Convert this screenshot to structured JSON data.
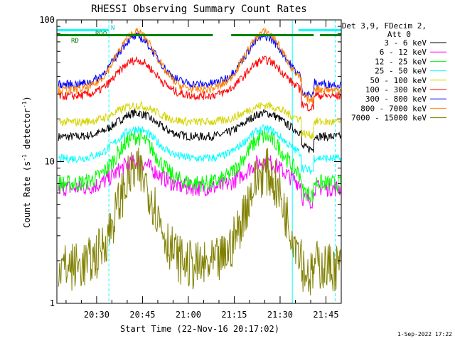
{
  "chart_data": {
    "type": "line",
    "title": "RHESSI Observing Summary Count Rates",
    "xlabel": "Start Time (22-Nov-16 20:17:02)",
    "ylabel": "Count Rate (s",
    "ylabel_sup": "-1",
    "ylabel_tail": " detector",
    "ylabel_tail_sup": "-1",
    "ylabel_end": ")",
    "y_scale": "log",
    "ylim": [
      1,
      100
    ],
    "xlim_minutes": [
      20.28,
      21.8
    ],
    "x_ticks": [
      "20:30",
      "20:45",
      "21:00",
      "21:15",
      "21:30",
      "21:45"
    ],
    "y_ticks": [
      "1",
      "10",
      "100"
    ],
    "legend_title_line1": "Det 3,9, FDecim 2,",
    "legend_title_line2": "Att 0",
    "legend_position": "right",
    "date_stamp": "1-Sep-2022 17:22",
    "annotations": {
      "rd_1": "RD",
      "rd_2": "RDO",
      "n": "N"
    },
    "flag_bars": [
      {
        "color": "#00ffff",
        "start": "20:17",
        "end": "20:34"
      },
      {
        "color": "#00ffff",
        "start": "21:36",
        "end": "21:50"
      },
      {
        "color": "#008000",
        "start": "20:17",
        "end": "21:08"
      },
      {
        "color": "#008000",
        "start": "21:14",
        "end": "21:41"
      },
      {
        "color": "#008000",
        "start": "21:43",
        "end": "21:50"
      }
    ],
    "night_periods": [
      {
        "start": "20:34",
        "end": "21:34"
      }
    ],
    "series": [
      {
        "name": "3 - 6 keV",
        "color": "#000000",
        "quiet": 15,
        "peak": 22,
        "night": 15
      },
      {
        "name": "6 - 12 keV",
        "color": "#ff00ff",
        "quiet": 6.5,
        "peak": 10,
        "night": 5
      },
      {
        "name": "12 - 25 keV",
        "color": "#00ff00",
        "quiet": 7,
        "peak": 15,
        "night": 6.5
      },
      {
        "name": "25 - 50 keV",
        "color": "#00ffff",
        "quiet": 10.5,
        "peak": 17,
        "night": 10
      },
      {
        "name": "50 - 100 keV",
        "color": "#d4d400",
        "quiet": 19,
        "peak": 25,
        "night": 18
      },
      {
        "name": "100 - 300 keV",
        "color": "#ff0000",
        "quiet": 29,
        "peak": 52,
        "night": 30
      },
      {
        "name": "300 - 800 keV",
        "color": "#0000ff",
        "quiet": 35,
        "peak": 76,
        "night": 36
      },
      {
        "name": "800 - 7000 keV",
        "color": "#ff8000",
        "quiet": 32,
        "peak": 82,
        "night": 32
      },
      {
        "name": "7000 - 15000 keV",
        "color": "#808000",
        "quiet": 1.8,
        "peak": 8.5,
        "night": 1.8
      }
    ]
  }
}
